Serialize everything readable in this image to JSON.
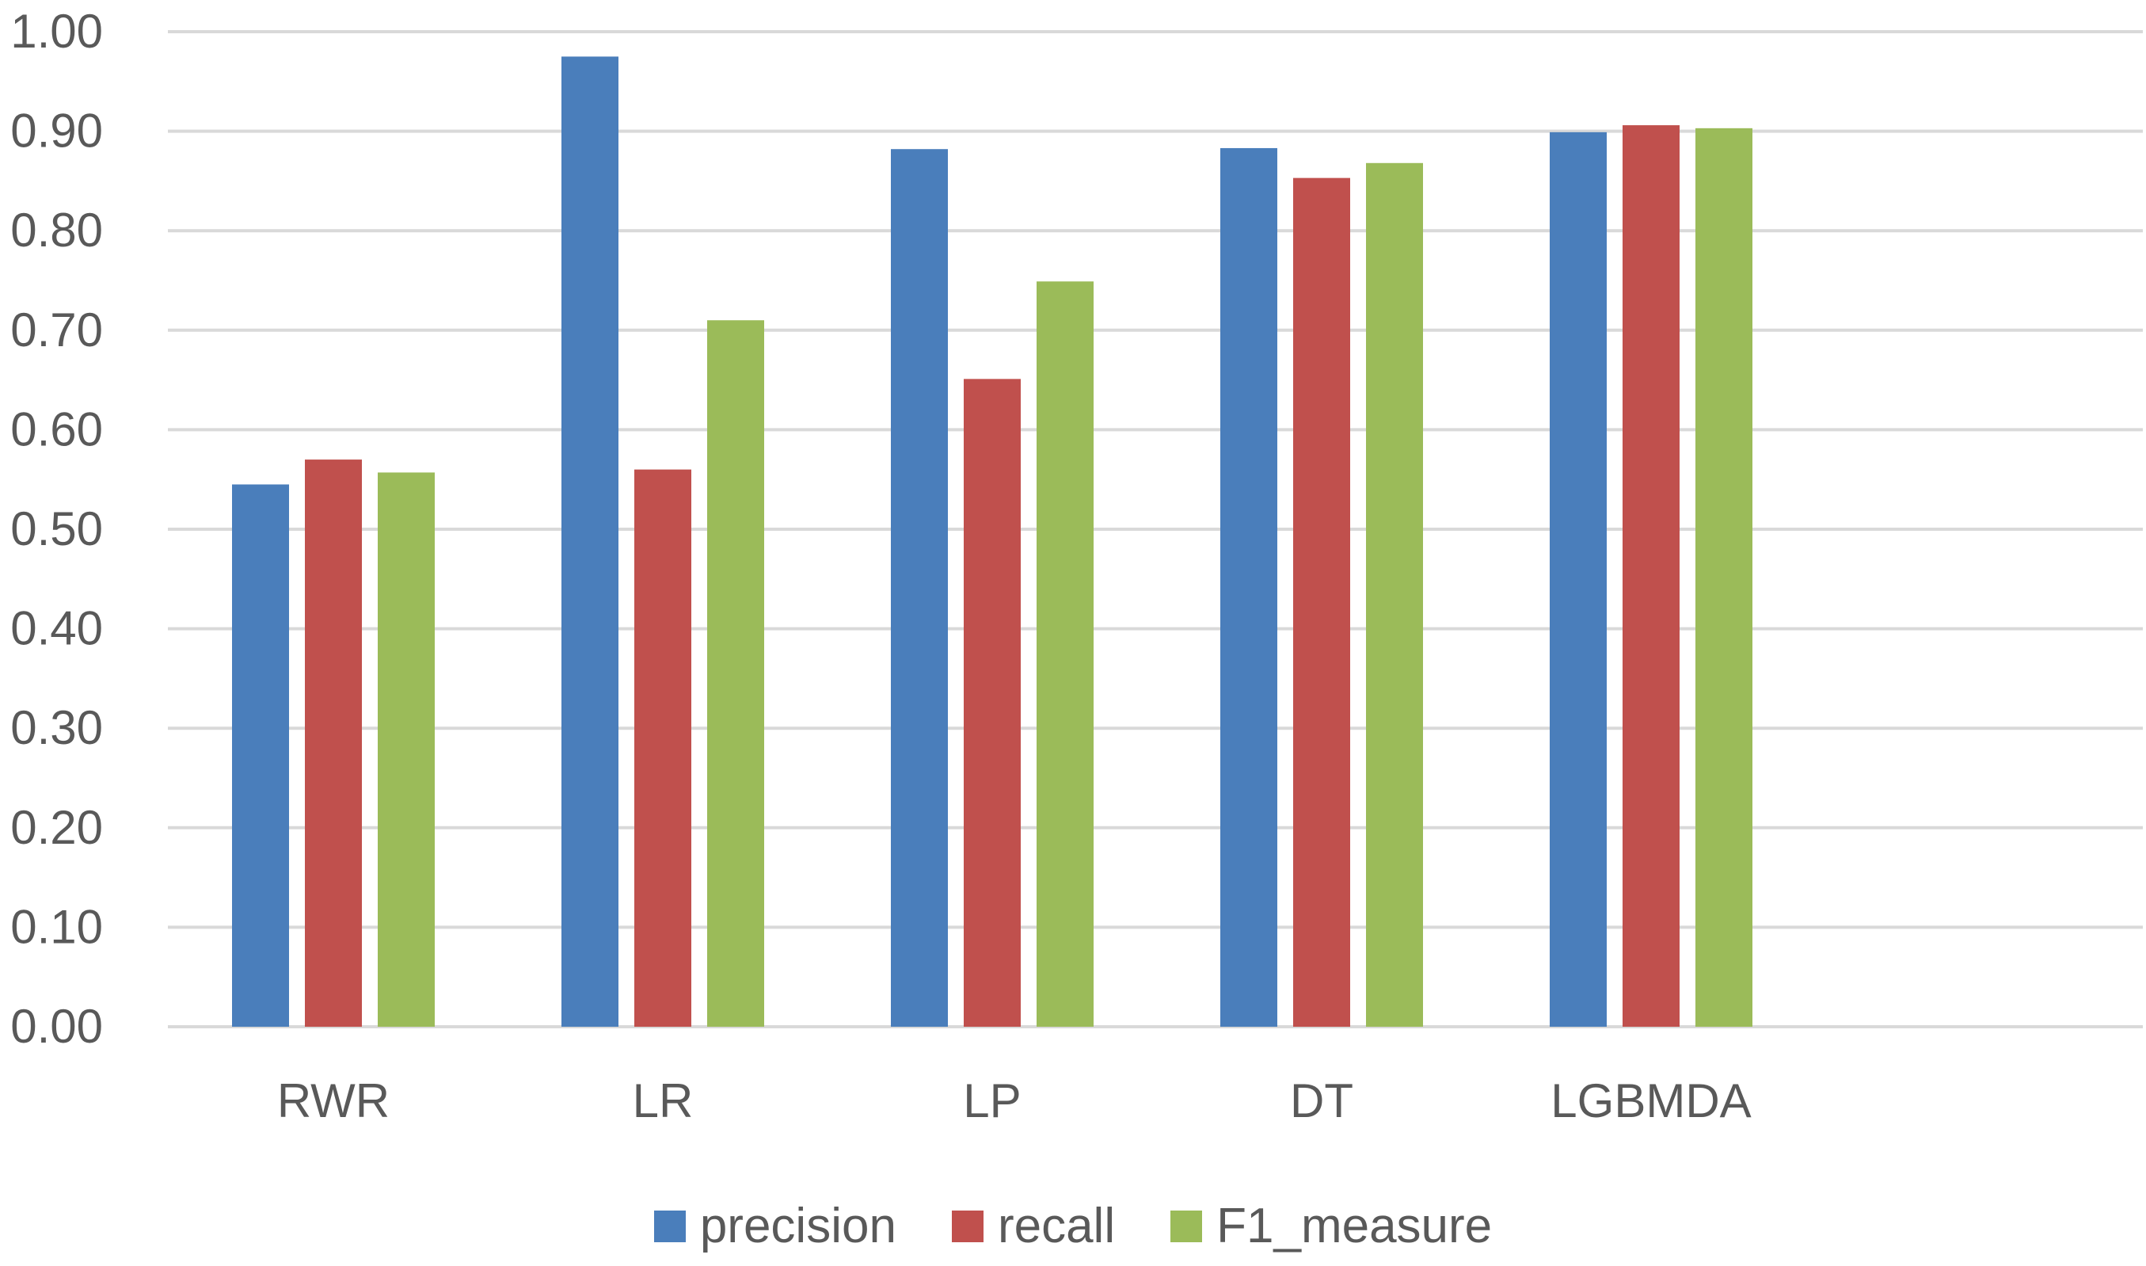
{
  "chart_data": {
    "type": "bar",
    "title": "",
    "xlabel": "",
    "ylabel": "",
    "categories": [
      "RWR",
      "LR",
      "LP",
      "DT",
      "LGBMDA"
    ],
    "series": [
      {
        "name": "precision",
        "color": "#4a7ebb",
        "values": [
          0.545,
          0.975,
          0.882,
          0.883,
          0.899
        ]
      },
      {
        "name": "recall",
        "color": "#c0504d",
        "values": [
          0.57,
          0.56,
          0.651,
          0.853,
          0.906
        ]
      },
      {
        "name": "F1_measure",
        "color": "#9bbb59",
        "values": [
          0.557,
          0.71,
          0.749,
          0.868,
          0.903
        ]
      }
    ],
    "ylim": [
      0,
      1.0
    ],
    "yticks": [
      "0.00",
      "0.10",
      "0.20",
      "0.30",
      "0.40",
      "0.50",
      "0.60",
      "0.70",
      "0.80",
      "0.90",
      "1.00"
    ],
    "grid": true,
    "legend_position": "bottom"
  }
}
